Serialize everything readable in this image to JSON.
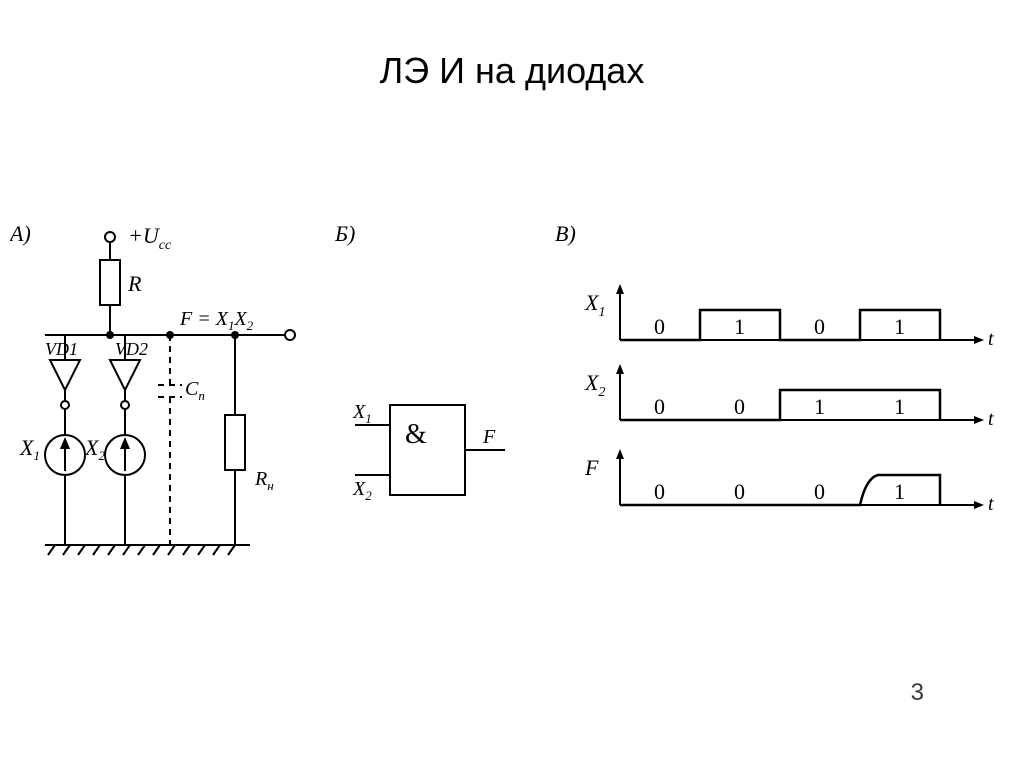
{
  "title": "ЛЭ И на диодах",
  "page_number": "3",
  "stroke": "#000000",
  "bg": "#ffffff",
  "font_main": "Times New Roman",
  "title_fontsize": 36,
  "panelA": {
    "label": "А)",
    "supply": "+U",
    "supply_sub": "cc",
    "R": "R",
    "F_expr_pre": "F = X",
    "F_expr_sub1": "1",
    "F_expr_mid": "X",
    "F_expr_sub2": "2",
    "VD1": "VD1",
    "VD2": "VD2",
    "X1": "X",
    "X1_sub": "1",
    "X2": "X",
    "X2_sub": "2",
    "Cp": "C",
    "Cp_sub": "п",
    "Rn": "R",
    "Rn_sub": "н"
  },
  "panelB": {
    "label": "Б)",
    "X1": "X",
    "X1_sub": "1",
    "X2": "X",
    "X2_sub": "2",
    "sym": "&",
    "F": "F"
  },
  "panelC": {
    "label": "В)",
    "t": "t",
    "signals": [
      {
        "name": "X",
        "sub": "1",
        "values": [
          "0",
          "1",
          "0",
          "1"
        ]
      },
      {
        "name": "X",
        "sub": "2",
        "values": [
          "0",
          "0",
          "1",
          "1"
        ]
      },
      {
        "name": "F",
        "sub": "",
        "values": [
          "0",
          "0",
          "0",
          "1"
        ]
      }
    ],
    "axis_stroke": "#000000",
    "line_width": 2
  }
}
